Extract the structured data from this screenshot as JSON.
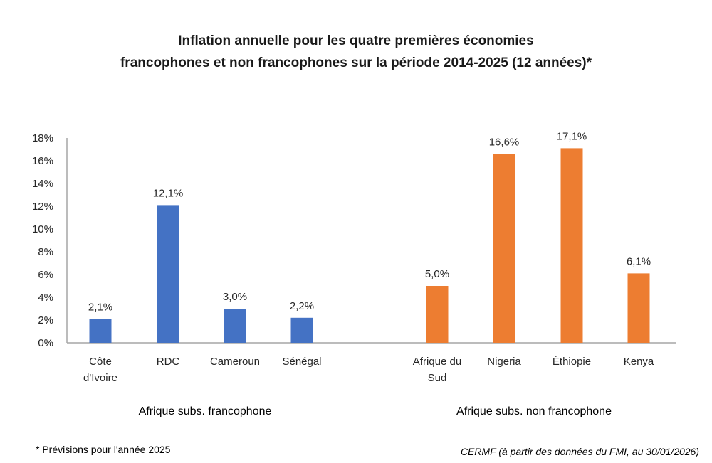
{
  "chart_data": {
    "type": "bar",
    "title_line1": "Inflation annuelle pour les quatre premières économies",
    "title_line2": "francophones et non francophones sur la période 2014-2025  (12 années)*",
    "categories": [
      "Côte d'Ivoire",
      "RDC",
      "Cameroun",
      "Sénégal",
      "Afrique du Sud",
      "Nigeria",
      "Éthiopie",
      "Kenya"
    ],
    "category_lines": [
      [
        "Côte",
        "d'Ivoire"
      ],
      [
        "RDC"
      ],
      [
        "Cameroun"
      ],
      [
        "Sénégal"
      ],
      [
        "Afrique du",
        "Sud"
      ],
      [
        "Nigeria"
      ],
      [
        "Éthiopie"
      ],
      [
        "Kenya"
      ]
    ],
    "values": [
      2.1,
      12.1,
      3.0,
      2.2,
      5.0,
      16.6,
      17.1,
      6.1
    ],
    "data_labels": [
      "2,1%",
      "12,1%",
      "3,0%",
      "2,2%",
      "5,0%",
      "16,6%",
      "17,1%",
      "6,1%"
    ],
    "groups": [
      {
        "name": "Afrique subs.  francophone",
        "color": "#4472C4"
      },
      {
        "name": "Afrique subs.  non francophone",
        "color": "#ED7D31"
      }
    ],
    "bar_groups": [
      0,
      0,
      0,
      0,
      1,
      1,
      1,
      1
    ],
    "ylim": [
      0,
      18
    ],
    "yticks": [
      "0%",
      "2%",
      "4%",
      "6%",
      "8%",
      "10%",
      "12%",
      "14%",
      "16%",
      "18%"
    ],
    "grid": false,
    "xlabel": "",
    "ylabel": ""
  },
  "footnote": "* Prévisions pour l'année 2025",
  "source": "CERMF (à partir des données du FMI, au 30/01/2026)"
}
